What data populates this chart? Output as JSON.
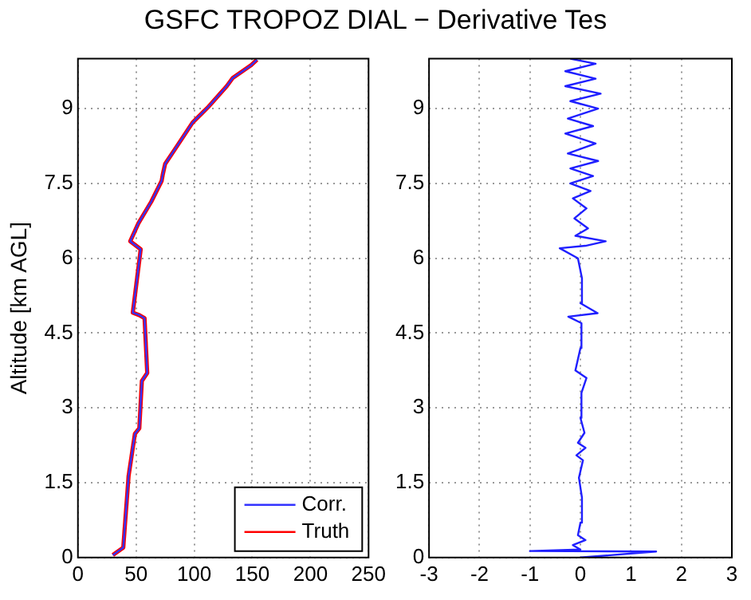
{
  "chart_data": [
    {
      "type": "line",
      "title": "GSFC TROPOZ DIAL − Derivative Tes",
      "ylabel": "Altitude [km AGL]",
      "xlim": [
        0,
        250
      ],
      "xticks": [
        0,
        50,
        100,
        150,
        200,
        250
      ],
      "ylim": [
        0,
        10
      ],
      "yticks": [
        0,
        1.5,
        3,
        4.5,
        6,
        7.5,
        9
      ],
      "grid": true,
      "legend": "bottom right",
      "series": [
        {
          "name": "Corr.",
          "color": "#3333ff",
          "x": [
            30,
            39,
            43.6,
            49,
            52.8,
            55,
            59.6,
            57.3,
            52.8,
            47.2,
            54,
            45,
            52,
            63,
            72,
            73,
            75,
            85,
            98.6,
            112,
            128,
            133,
            149,
            154
          ],
          "values": [
            0.05,
            0.2,
            1.64,
            2.48,
            2.59,
            3.54,
            3.7,
            4.8,
            4.86,
            4.91,
            6.18,
            6.34,
            6.7,
            7.13,
            7.55,
            7.68,
            7.89,
            8.24,
            8.72,
            9.03,
            9.45,
            9.61,
            9.87,
            9.98
          ]
        },
        {
          "name": "Truth",
          "color": "#ff0000",
          "x": [
            30,
            39,
            43.6,
            49,
            52.8,
            55,
            59.6,
            57.3,
            52.8,
            47.2,
            54,
            45,
            52,
            63,
            72,
            73,
            75,
            85,
            98.6,
            112,
            128,
            133,
            149,
            154
          ],
          "values": [
            0.05,
            0.2,
            1.64,
            2.48,
            2.59,
            3.54,
            3.7,
            4.8,
            4.86,
            4.91,
            6.18,
            6.34,
            6.7,
            7.13,
            7.55,
            7.68,
            7.89,
            8.24,
            8.72,
            9.03,
            9.45,
            9.61,
            9.87,
            9.98
          ]
        }
      ]
    },
    {
      "type": "line",
      "xlim": [
        -3,
        3
      ],
      "xticks": [
        -3,
        -2,
        -1,
        0,
        1,
        2,
        3
      ],
      "ylim": [
        0,
        10
      ],
      "yticks": [
        0,
        1.5,
        3,
        4.5,
        6,
        7.5,
        9
      ],
      "grid": true,
      "series": [
        {
          "color": "#1f1fff",
          "x": [
            0,
            1.5,
            -1,
            0,
            -0.15,
            0.1,
            -0.05,
            0,
            0.03,
            -0.03,
            0.05,
            -0.08,
            0.1,
            -0.05,
            0.08,
            0,
            0.02,
            0.12,
            -0.1,
            0,
            0.02,
            -0.24,
            0.34,
            0,
            0.03,
            -0.05,
            -0.41,
            0.1,
            0.5,
            -0.1,
            0.15,
            -0.12,
            0.12,
            -0.15,
            0.2,
            -0.2,
            0.25,
            -0.2,
            0.35,
            -0.25,
            0.3,
            -0.3,
            0.25,
            -0.25,
            0.35,
            -0.2,
            0.4,
            -0.3,
            0.3,
            -0.3,
            0.3,
            -0.2
          ],
          "values": [
            0,
            0.12,
            0.13,
            0.16,
            0.25,
            0.35,
            0.45,
            0.7,
            1.2,
            1.6,
            1.95,
            2.05,
            2.2,
            2.3,
            2.5,
            2.8,
            3.3,
            3.6,
            3.75,
            4.2,
            4.7,
            4.83,
            4.9,
            5.1,
            5.6,
            6,
            6.2,
            6.25,
            6.34,
            6.45,
            6.6,
            6.8,
            7,
            7.2,
            7.35,
            7.5,
            7.65,
            7.8,
            7.95,
            8.1,
            8.3,
            8.5,
            8.65,
            8.8,
            9,
            9.15,
            9.3,
            9.45,
            9.6,
            9.75,
            9.9,
            10
          ]
        }
      ]
    }
  ]
}
